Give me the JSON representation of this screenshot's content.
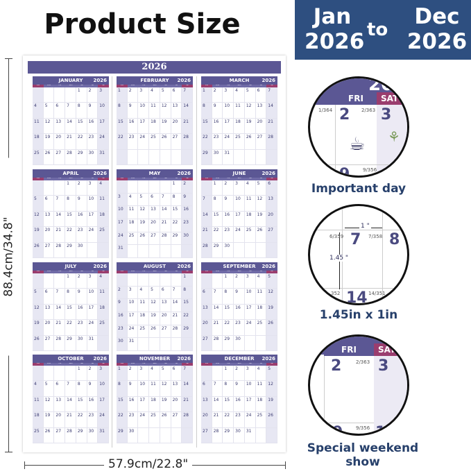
{
  "title": "Product Size",
  "banner": {
    "start_month": "Jan",
    "start_year": "2026",
    "to": "to",
    "end_month": "Dec",
    "end_year": "2026"
  },
  "poster": {
    "year": "2026",
    "weekdays": [
      "SUN",
      "MON",
      "TUE",
      "WED",
      "THU",
      "FRI",
      "SAT"
    ],
    "months": [
      "JANUARY",
      "FEBRUARY",
      "MARCH",
      "APRIL",
      "MAY",
      "JUNE",
      "JULY",
      "AUGUST",
      "SEPTEMBER",
      "OCTOBER",
      "NOVEMBER",
      "DECEMBER"
    ]
  },
  "dimensions": {
    "height": "88.4cm/34.8\"",
    "width": "57.9cm/22.8\""
  },
  "colors": {
    "header": "#5b5794",
    "weekend_header": "#9a3d6e",
    "weekend_fill": "#e7e7f3",
    "banner": "#2e4f80"
  },
  "detail1": {
    "caption": "Important day",
    "year_partial": "20",
    "fri": "FRI",
    "sat": "SAT",
    "day2": "2",
    "day3": "3",
    "day9": "9",
    "c1": "1/364",
    "c2": "2/363",
    "c9": "9/356",
    "image": "teacup-icon"
  },
  "detail2": {
    "caption": "1.45in x 1in",
    "w": "1 \"",
    "h": "1.45 \"",
    "day7": "7",
    "day8": "8",
    "day14": "14",
    "c6": "6/359",
    "c7": "7/358",
    "c14": "14/351",
    "c13": "352"
  },
  "detail3": {
    "caption": "Special weekend show",
    "fri": "FRI",
    "sat": "SAT",
    "day2": "2",
    "day3": "3",
    "day9": "9",
    "day10": "10",
    "c2": "2/363",
    "c9": "9/356"
  }
}
